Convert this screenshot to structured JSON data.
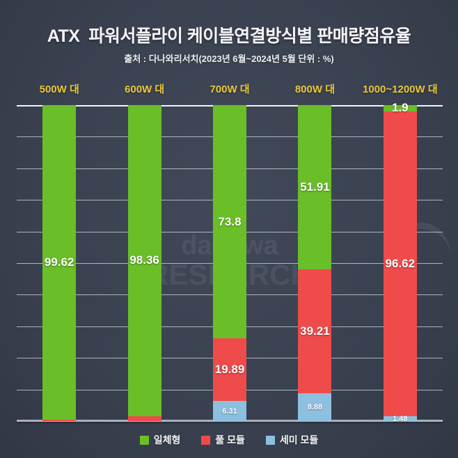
{
  "title": "ATX  파워서플라이 케이블연결방식별 판매량점유율",
  "subtitle": "출처 : 다나와리서치(2023년 6월~2024년 5월 단위 : %)",
  "watermark": {
    "line1": "danawa",
    "line2": "RESEARCH"
  },
  "colors": {
    "background": "#3a4150",
    "integrated_green": "#6abe28",
    "full_module_red": "#ef4b4b",
    "semi_module_blue": "#8cc0de",
    "category_label_yellow": "#e9c83a",
    "gridline": "#dae2ee",
    "baseline": "#a8b1c0"
  },
  "legend": [
    {
      "label": "일체형",
      "color": "#6abe28"
    },
    {
      "label": "풀 모듈",
      "color": "#ef4b4b"
    },
    {
      "label": "세미 모듈",
      "color": "#8cc0de"
    }
  ],
  "chart_data": {
    "type": "bar",
    "stacked": true,
    "unit": "%",
    "title": "ATX  파워서플라이 케이블연결방식별 판매량점유율",
    "source_note": "출처 : 다나와리서치(2023년 6월~2024년 5월 단위 : %)",
    "categories": [
      "500W 대",
      "600W 대",
      "700W 대",
      "800W 대",
      "1000~1200W 대"
    ],
    "series": [
      {
        "name": "일체형",
        "color": "#6abe28",
        "values": [
          99.62,
          98.36,
          73.8,
          51.91,
          1.9
        ],
        "labels": [
          "99.62",
          "98.36",
          "73.8",
          "51.91",
          "1.9"
        ]
      },
      {
        "name": "풀 모듈",
        "color": "#ef4b4b",
        "values": [
          0.38,
          1.64,
          19.89,
          39.21,
          96.62
        ],
        "labels": [
          "",
          "",
          "19.89",
          "39.21",
          "96.62"
        ]
      },
      {
        "name": "세미 모듈",
        "color": "#8cc0de",
        "values": [
          0,
          0,
          6.31,
          8.88,
          1.48
        ],
        "labels": [
          "",
          "",
          "6.31",
          "8.88",
          "1.48"
        ]
      }
    ],
    "ylim": [
      0,
      100
    ],
    "grid": true,
    "grid_interval": 10,
    "legend_position": "bottom"
  }
}
